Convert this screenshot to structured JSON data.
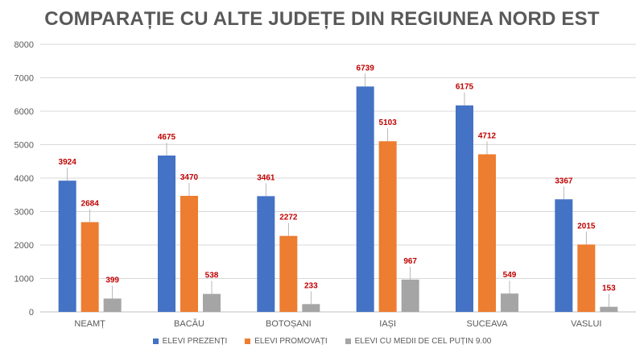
{
  "chart_data": {
    "type": "bar",
    "title": "COMPARAȚIE CU ALTE JUDEȚE DIN REGIUNEA NORD EST",
    "xlabel": "",
    "ylabel": "",
    "ylim": [
      0,
      8000
    ],
    "yticks": [
      0,
      1000,
      2000,
      3000,
      4000,
      5000,
      6000,
      7000,
      8000
    ],
    "grid": true,
    "legend_position": "bottom",
    "categories": [
      "NEAMȚ",
      "BACĂU",
      "BOTOȘANI",
      "IAȘI",
      "SUCEAVA",
      "VASLUI"
    ],
    "series": [
      {
        "name": "ELEVI PREZENȚI",
        "color": "#4472c4",
        "values": [
          3924,
          4675,
          3461,
          6739,
          6175,
          3367
        ]
      },
      {
        "name": "ELEVI PROMOVAȚI",
        "color": "#ed7d31",
        "values": [
          2684,
          3470,
          2272,
          5103,
          4712,
          2015
        ]
      },
      {
        "name": "ELEVI CU MEDII DE CEL PUȚIN 9.00",
        "color": "#a5a5a5",
        "values": [
          399,
          538,
          233,
          967,
          549,
          153
        ]
      }
    ],
    "data_label_color": "#c00000"
  }
}
